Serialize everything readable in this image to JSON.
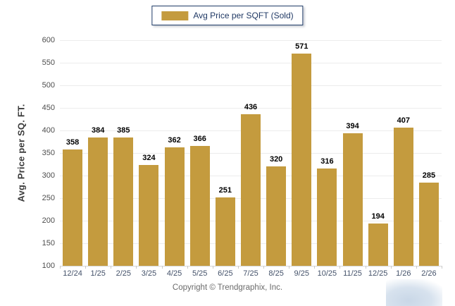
{
  "legend": {
    "label": "Avg Price per SQFT (Sold)"
  },
  "chart_data": {
    "type": "bar",
    "title": "Avg Price per SQFT (Sold)",
    "categories": [
      "12/24",
      "1/25",
      "2/25",
      "3/25",
      "4/25",
      "5/25",
      "6/25",
      "7/25",
      "8/25",
      "9/25",
      "10/25",
      "11/25",
      "12/25",
      "1/26",
      "2/26"
    ],
    "values": [
      358,
      384,
      385,
      324,
      362,
      366,
      251,
      436,
      320,
      571,
      316,
      394,
      194,
      407,
      285
    ],
    "xlabel": "",
    "ylabel": "Avg. Price per SQ. FT.",
    "ylim": [
      100,
      600
    ],
    "ytick_step": 50,
    "grid": true,
    "legend_position": "top-center",
    "bar_color": "#C49B3E",
    "legend_border_color": "#1F3C68"
  },
  "footer": {
    "copyright": "Copyright © Trendgraphix, Inc."
  }
}
